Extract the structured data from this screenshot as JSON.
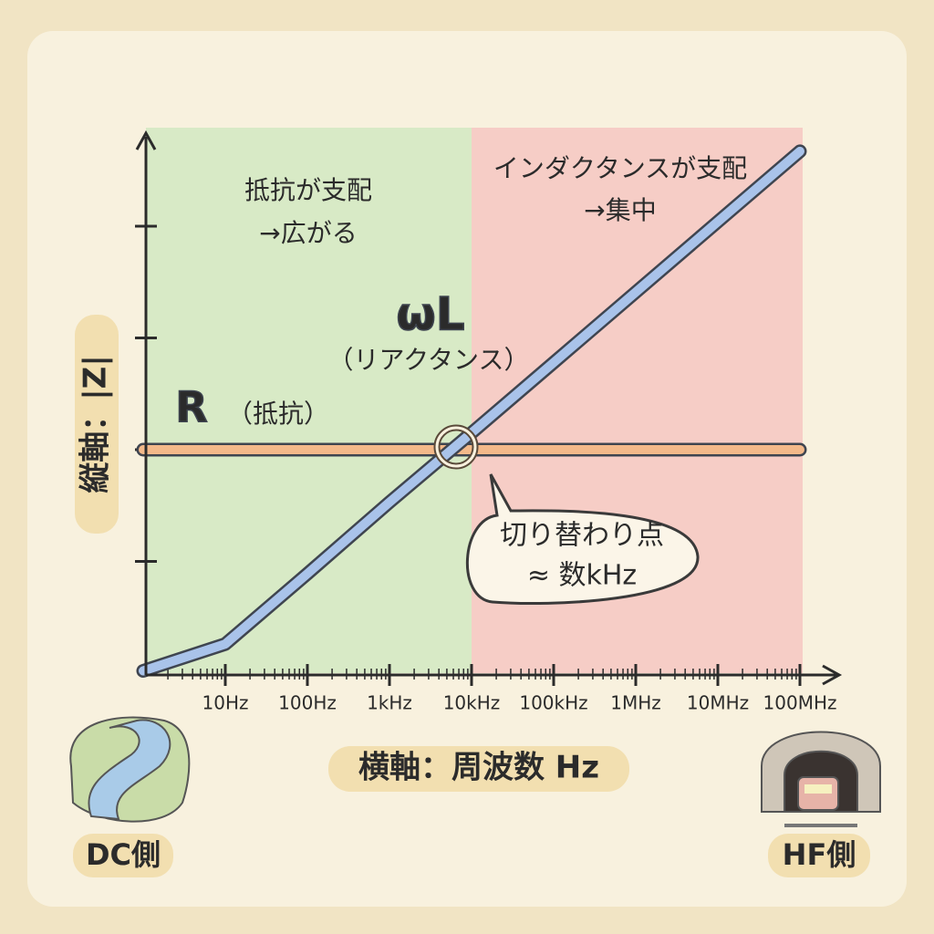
{
  "chart_data": {
    "type": "line",
    "x_label": "横軸：周波数 Hz",
    "y_label": "縦軸：|Z|",
    "xscale": "log",
    "xlim": [
      1,
      100000000
    ],
    "ylim": [
      0,
      4.8
    ],
    "xticks": [
      {
        "value": 10,
        "label": "10Hz"
      },
      {
        "value": 100,
        "label": "100Hz"
      },
      {
        "value": 1000,
        "label": "1kHz"
      },
      {
        "value": 10000,
        "label": "10kHz"
      },
      {
        "value": 100000,
        "label": "100kHz"
      },
      {
        "value": 1000000,
        "label": "1MHz"
      },
      {
        "value": 10000000,
        "label": "10MHz"
      },
      {
        "value": 100000000,
        "label": "100MHz"
      }
    ],
    "yticks": [
      1,
      2,
      3,
      4
    ],
    "regions": [
      {
        "x": [
          1,
          10000
        ],
        "color": "#d8eac6",
        "text": [
          "抵抗が支配",
          "→広がる"
        ]
      },
      {
        "x": [
          10000,
          100000000
        ],
        "color": "#f6cdc6",
        "text": [
          "インダクタンスが支配",
          "→集中"
        ]
      }
    ],
    "series": [
      {
        "name": "R",
        "note": "（抵抗）",
        "color": "#f3b98a",
        "label_color": "#f0a060",
        "x": [
          1,
          100000000
        ],
        "values": [
          2,
          2
        ]
      },
      {
        "name": "ωL",
        "note": "（リアクタンス）",
        "color": "#a9c3ea",
        "label_color": "#8fb0e4",
        "x": [
          1,
          10,
          100,
          1000,
          10000,
          100000,
          1000000,
          10000000,
          100000000
        ],
        "values": [
          0.02,
          0.26,
          0.89,
          1.53,
          2.15,
          2.78,
          3.41,
          4.04,
          4.67
        ]
      }
    ],
    "callout": [
      "切り替わり点",
      "≈ 数kHz"
    ],
    "left_caption": "DC側",
    "right_caption": "HF側"
  }
}
